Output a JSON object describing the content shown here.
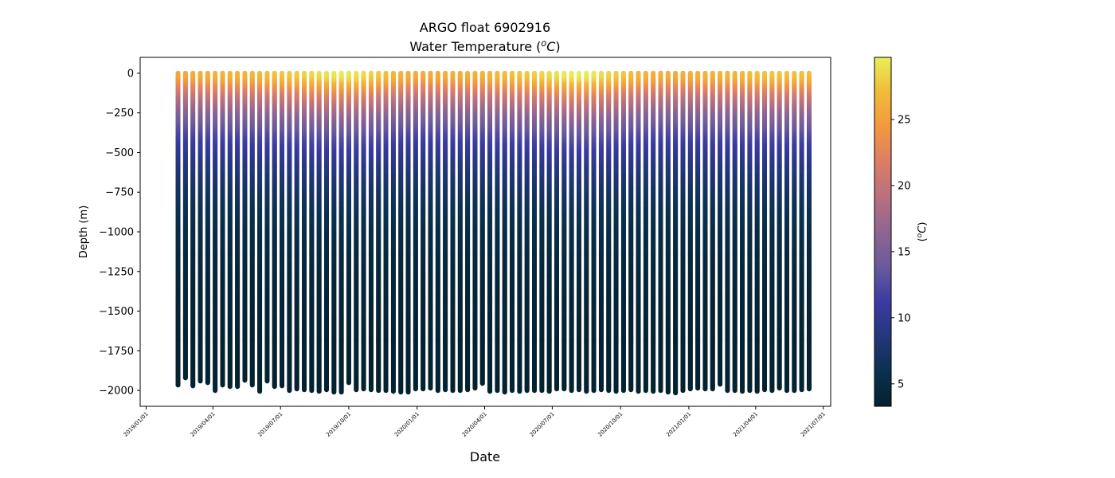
{
  "chart_data": {
    "type": "scatter",
    "title": "ARGO float 6902916",
    "subtitle_text": "Water Temperature (",
    "subtitle_unit": "oC",
    "xlabel": "Date",
    "ylabel": "Depth (m)",
    "colorbar_label_unit": "oC",
    "x_axis_type": "date",
    "xlim": [
      "2018-12-24",
      "2021-07-11"
    ],
    "ylim": [
      -2100,
      100
    ],
    "yticks": [
      0,
      -250,
      -500,
      -750,
      -1000,
      -1250,
      -1500,
      -1750,
      -2000
    ],
    "xticks": [
      "2019/01/01",
      "2019/04/01",
      "2019/07/01",
      "2019/10/01",
      "2020/01/01",
      "2020/04/01",
      "2020/07/01",
      "2020/10/01",
      "2021/01/01",
      "2021/04/01",
      "2021/07/01"
    ],
    "colorbar": {
      "colormap": "thermal",
      "range": [
        3.3,
        29.7
      ],
      "ticks": [
        5,
        10,
        15,
        20,
        25
      ],
      "colors": [
        "#04202c",
        "#0b3150",
        "#24367c",
        "#3b3ba3",
        "#6a5a9c",
        "#8f6591",
        "#b8707e",
        "#dd7d65",
        "#f3983f",
        "#f2ba39",
        "#e8f059"
      ]
    },
    "profiles": {
      "first_date": "2019-02-13",
      "last_date": "2021-06-10",
      "interval_days": 10,
      "count": 86,
      "max_depths": [
        -1965,
        -1920,
        -1970,
        -1940,
        -1950,
        -2000,
        -1965,
        -1975,
        -1975,
        -1935,
        -1965,
        -2005,
        -1940,
        -1975,
        -1970,
        -2000,
        -1990,
        -1995,
        -2000,
        -2005,
        -1995,
        -2010,
        -2010,
        -1950,
        -1995,
        -1990,
        -1995,
        -2000,
        -2000,
        -2005,
        -2010,
        -2010,
        -1990,
        -1990,
        -1985,
        -2000,
        -1995,
        -2000,
        -2000,
        -1995,
        -1985,
        -1955,
        -2005,
        -2000,
        -2010,
        -2000,
        -2005,
        -2000,
        -2000,
        -2000,
        -2005,
        -1990,
        -1990,
        -2000,
        -1995,
        -2005,
        -2000,
        -1995,
        -2000,
        -2005,
        -2000,
        -1995,
        -2005,
        -2000,
        -2005,
        -2000,
        -2010,
        -2015,
        -2000,
        -1990,
        -1985,
        -1990,
        -1990,
        -1960,
        -2000,
        -2000,
        -2005,
        -2000,
        -2005,
        -1995,
        -2000,
        -1985,
        -2000,
        -2000,
        -1995,
        -1990
      ],
      "surface_temps": [
        25.5,
        25.8,
        26.0,
        26.2,
        26.3,
        26.5,
        26.6,
        26.6,
        26.6,
        26.7,
        26.8,
        27.0,
        27.2,
        27.4,
        27.6,
        27.8,
        28.0,
        28.3,
        28.5,
        28.8,
        29.0,
        29.2,
        29.3,
        29.2,
        29.0,
        28.6,
        28.2,
        27.8,
        27.4,
        27.0,
        26.6,
        26.2,
        26.0,
        25.9,
        25.9,
        26.0,
        26.1,
        26.2,
        26.3,
        26.4,
        26.5,
        26.6,
        26.8,
        27.0,
        27.2,
        27.4,
        27.6,
        27.8,
        28.1,
        28.4,
        28.7,
        29.0,
        29.3,
        29.5,
        29.6,
        29.5,
        29.2,
        28.8,
        28.4,
        28.0,
        27.6,
        27.2,
        26.8,
        26.5,
        26.3,
        26.2,
        26.1,
        26.1,
        26.2,
        26.3,
        26.4,
        26.5,
        26.5,
        26.6,
        26.7,
        26.8,
        27.0,
        27.2,
        27.4,
        27.5,
        27.6,
        27.6,
        27.5,
        27.4,
        27.3,
        27.2
      ],
      "deep_temp": 3.5
    }
  }
}
